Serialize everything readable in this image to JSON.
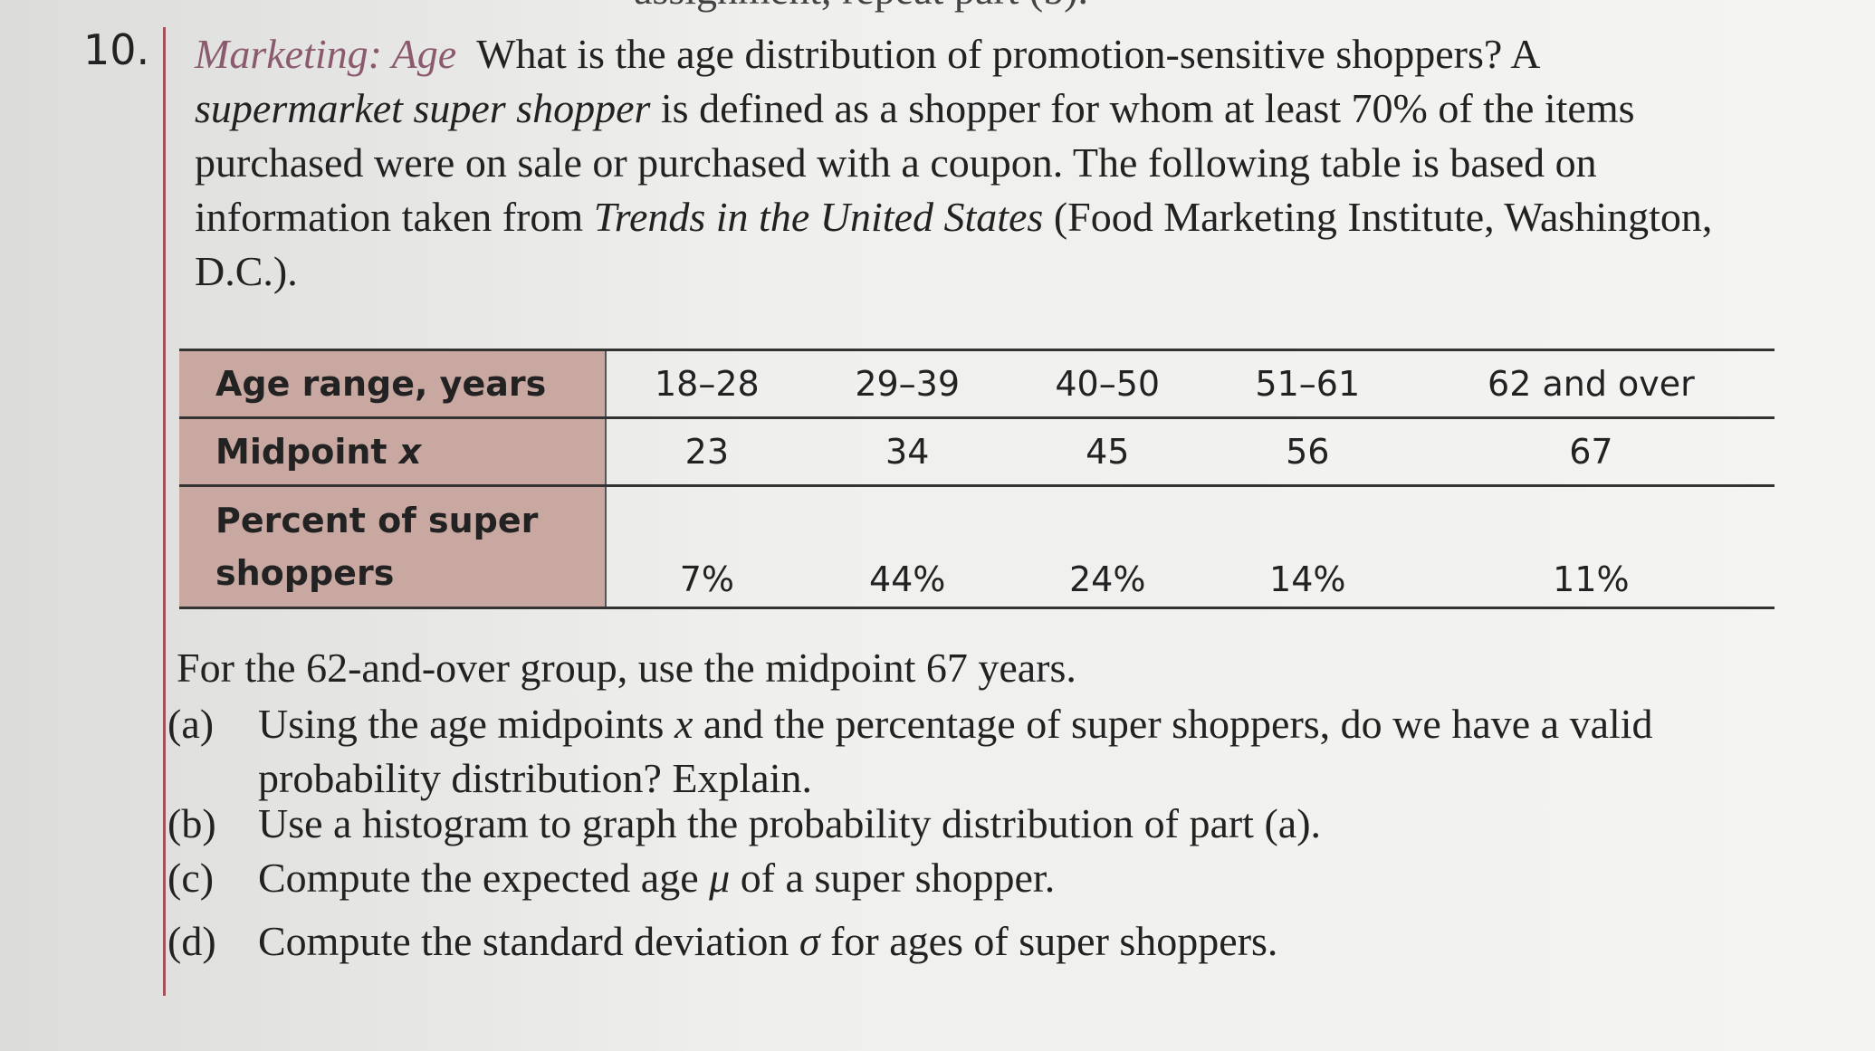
{
  "header_fragment": "assignment, repeat part (b).",
  "problem": {
    "number": "10.",
    "title": "Marketing: Age",
    "intro": [
      "What is the age distribution of promotion-sensitive shoppers? A ",
      "supermarket super shopper",
      " is defined as a shopper for whom at least 70% of the items purchased were on sale or purchased with a coupon. The following table is based on information taken from ",
      "Trends in the United States",
      " (Food Marketing Institute, Washington, D.C.)."
    ]
  },
  "table": {
    "rows": [
      [
        [
          "Age range, years"
        ],
        "18–28",
        "29–39",
        "40–50",
        "51–61",
        "62 and over"
      ],
      [
        [
          "Midpoint ",
          "x"
        ],
        "23",
        "34",
        "45",
        "56",
        "67"
      ],
      [
        [
          "Percent of super shoppers"
        ],
        "7%",
        "44%",
        "24%",
        "14%",
        "11%"
      ]
    ]
  },
  "note": "For the 62-and-over group, use the midpoint 67 years.",
  "parts": [
    {
      "label": "(a)",
      "text": [
        "Using the age midpoints ",
        "x",
        " and the percentage of super shoppers, do we have a valid probability distribution? Explain."
      ]
    },
    {
      "label": "(b)",
      "text": [
        "Use a histogram to graph the probability distribution of part (a)."
      ]
    },
    {
      "label": "(c)",
      "text": [
        "Compute the expected age ",
        "μ",
        " of a super shopper."
      ]
    },
    {
      "label": "(d)",
      "text": [
        "Compute the standard deviation ",
        "σ",
        " for ages of super shoppers."
      ]
    }
  ]
}
